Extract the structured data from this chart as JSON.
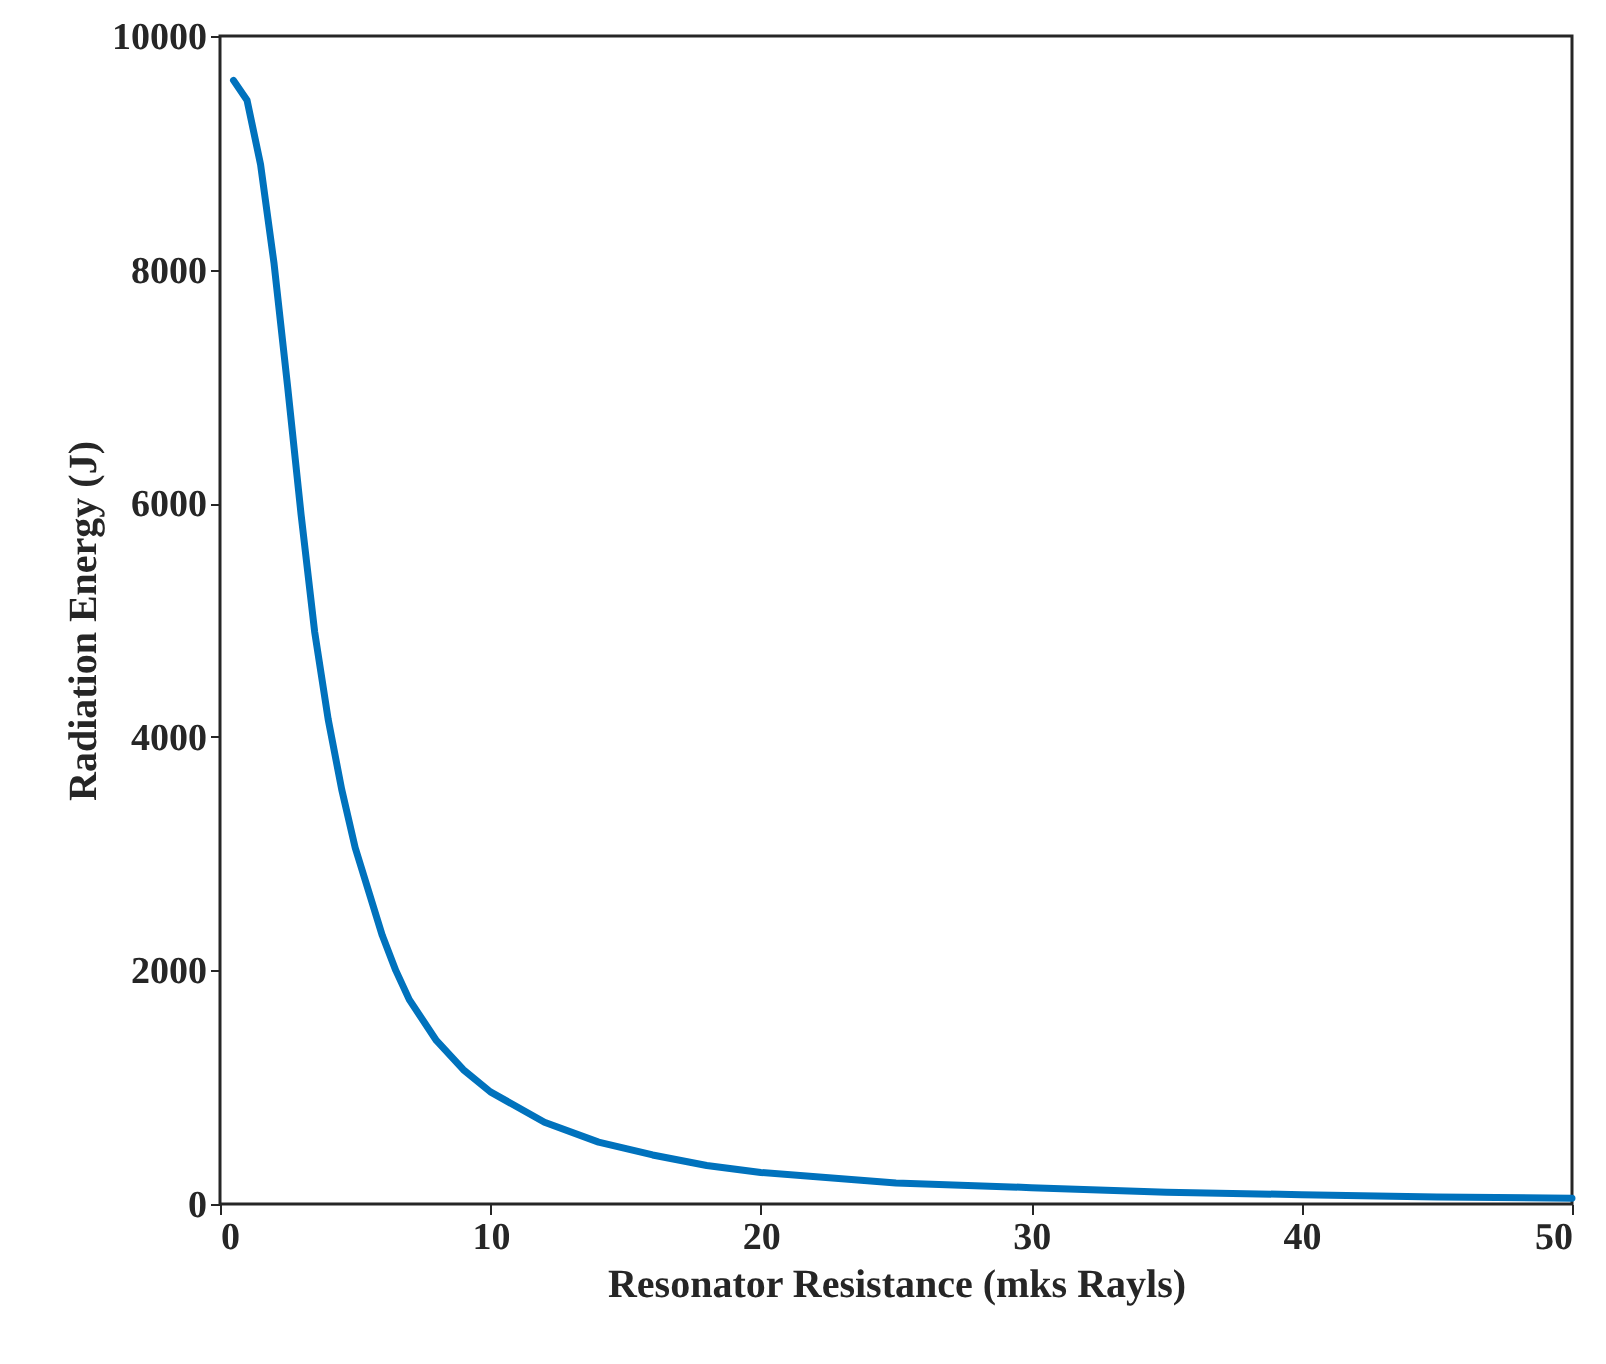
{
  "chart_data": {
    "type": "line",
    "xlabel": "Resonator Resistance (mks Rayls)",
    "ylabel": "Radiation Energy (J)",
    "x": [
      0.5,
      1,
      1.5,
      2,
      2.5,
      3,
      3.5,
      4,
      4.5,
      5,
      6,
      6.5,
      7,
      8,
      9,
      10,
      12,
      14,
      16,
      18,
      20,
      25,
      30,
      35,
      40,
      45,
      50
    ],
    "series": [
      {
        "color": "#0072bd",
        "values": [
          9620,
          9450,
          8900,
          8050,
          7000,
          5900,
          4900,
          4150,
          3550,
          3050,
          2300,
          2000,
          1750,
          1400,
          1150,
          960,
          700,
          530,
          420,
          330,
          270,
          180,
          140,
          100,
          80,
          60,
          50
        ]
      }
    ],
    "xlim": [
      0,
      50
    ],
    "xticks": [
      0,
      10,
      20,
      30,
      40,
      50
    ],
    "ylim": [
      0,
      10000
    ],
    "yticks": [
      0,
      2000,
      4000,
      6000,
      8000,
      10000
    ],
    "grid": false,
    "marker": "none",
    "line_style": "solid"
  }
}
